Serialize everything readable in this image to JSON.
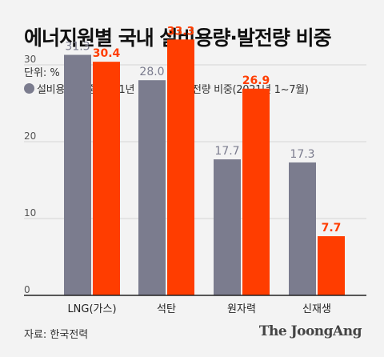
{
  "title": "에너지원별 국내 설비용량·발전량 비중",
  "unit_label": "단위: %",
  "source": "자료: 한국전력",
  "brand": "The JoongAng",
  "colors": {
    "capacity": "#7b7c8e",
    "generation": "#ff3d00",
    "grid": "#d6d6d6",
    "axis": "#222222"
  },
  "chart_data": {
    "type": "bar",
    "categories": [
      "LNG(가스)",
      "석탄",
      "원자력",
      "신재생"
    ],
    "series": [
      {
        "name": "설비용량 비중(2021년 7월)",
        "values": [
          31.3,
          28.0,
          17.7,
          17.3
        ]
      },
      {
        "name": "발전량 비중(2021년 1~7월)",
        "values": [
          30.4,
          33.3,
          26.9,
          7.7
        ]
      }
    ],
    "yticks": [
      0,
      10,
      20,
      30
    ],
    "ylim": [
      0,
      40
    ],
    "grid": true,
    "legend_position": "top-left"
  }
}
